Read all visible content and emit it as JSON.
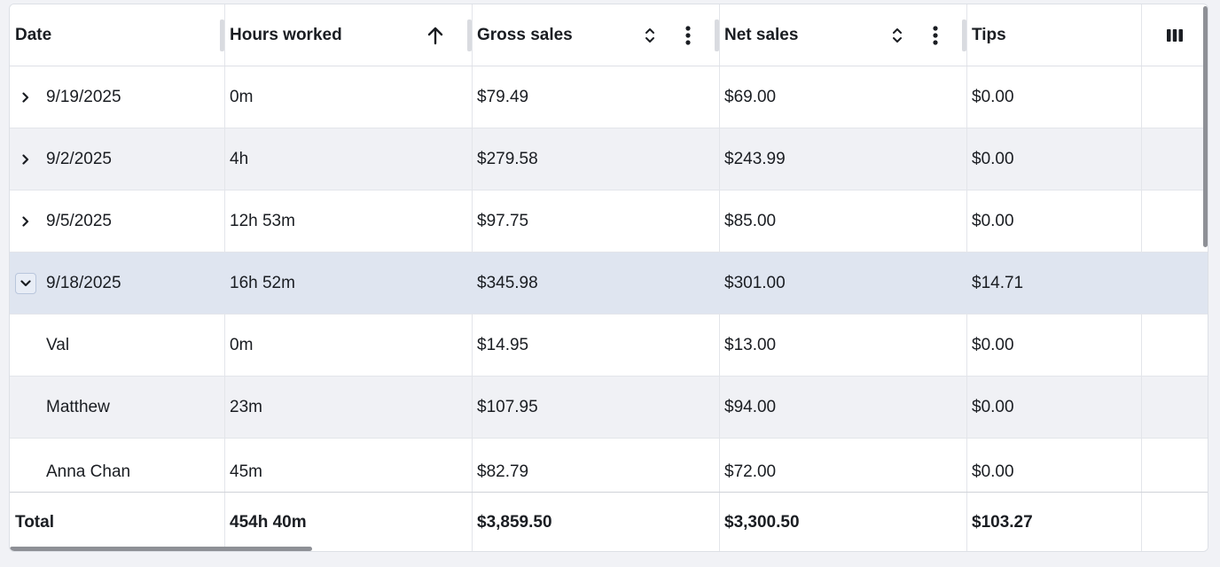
{
  "columns": {
    "date": "Date",
    "hours": "Hours worked",
    "gross": "Gross sales",
    "net": "Net sales",
    "tips": "Tips"
  },
  "header_icons": {
    "hours_sort": "sort-ascending-icon",
    "gross_sort": "sort-unsorted-icon",
    "net_sort": "sort-unsorted-icon",
    "gross_menu": "kebab-menu-icon",
    "net_menu": "kebab-menu-icon",
    "columns_toggle": "columns-icon"
  },
  "rows": [
    {
      "date": "9/19/2025",
      "hours": "0m",
      "gross": "$79.49",
      "net": "$69.00",
      "tips": "$0.00",
      "expander": "collapsed"
    },
    {
      "date": "9/2/2025",
      "hours": "4h",
      "gross": "$279.58",
      "net": "$243.99",
      "tips": "$0.00",
      "expander": "collapsed"
    },
    {
      "date": "9/5/2025",
      "hours": "12h 53m",
      "gross": "$97.75",
      "net": "$85.00",
      "tips": "$0.00",
      "expander": "collapsed"
    },
    {
      "date": "9/18/2025",
      "hours": "16h 52m",
      "gross": "$345.98",
      "net": "$301.00",
      "tips": "$14.71",
      "expander": "expanded"
    },
    {
      "date": "Val",
      "hours": "0m",
      "gross": "$14.95",
      "net": "$13.00",
      "tips": "$0.00",
      "expander": "none"
    },
    {
      "date": "Matthew",
      "hours": "23m",
      "gross": "$107.95",
      "net": "$94.00",
      "tips": "$0.00",
      "expander": "none"
    },
    {
      "date": "Anna Chan",
      "hours": "45m",
      "gross": "$82.79",
      "net": "$72.00",
      "tips": "$0.00",
      "expander": "none"
    }
  ],
  "totals": {
    "label": "Total",
    "hours": "454h 40m",
    "gross": "$3,859.50",
    "net": "$3,300.50",
    "tips": "$103.27"
  },
  "colors": {
    "selected_row": "#dfe5f0",
    "alt_row": "#f0f1f5",
    "border": "#e3e5ea"
  }
}
